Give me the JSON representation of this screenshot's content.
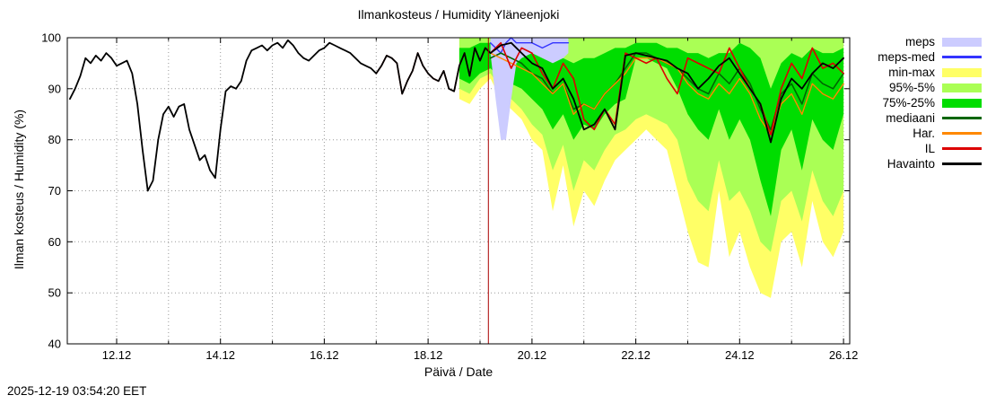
{
  "title": "Ilmankosteus / Humidity  Yläneenjoki",
  "timestamp": "2025-12-19 03:54:20 EET",
  "chart_data": {
    "type": "line",
    "title": "Ilmankosteus / Humidity  Yläneenjoki",
    "xlabel": "Päivä / Date",
    "ylabel": "Ilman kosteus / Humidity (%)",
    "xlim": [
      11.05,
      26.12
    ],
    "ylim": [
      40,
      100
    ],
    "grid": true,
    "legend_position": "outside-right",
    "y_ticks": [
      40,
      50,
      60,
      70,
      80,
      90,
      100
    ],
    "x_major_ticks": [
      {
        "v": 12,
        "label": "12.12"
      },
      {
        "v": 14,
        "label": "14.12"
      },
      {
        "v": 16,
        "label": "16.12"
      },
      {
        "v": 18,
        "label": "18.12"
      },
      {
        "v": 20,
        "label": "20.12"
      },
      {
        "v": 22,
        "label": "22.12"
      },
      {
        "v": 24,
        "label": "24.12"
      },
      {
        "v": 26,
        "label": "26.12"
      }
    ],
    "x_minor_days": [
      13,
      15,
      17,
      19,
      21,
      23,
      25
    ],
    "grid_days": [
      12,
      13,
      14,
      15,
      16,
      17,
      18,
      19,
      20,
      21,
      22,
      23,
      24,
      25,
      26
    ],
    "now_line": {
      "x": 19.16,
      "color": "#aa0000"
    },
    "bands": [
      {
        "name": "min-max",
        "color": "#ffff66",
        "x": [
          18.6,
          18.8,
          19.0,
          19.2,
          19.4,
          19.6,
          19.8,
          20.0,
          20.2,
          20.4,
          20.6,
          20.8,
          21.0,
          21.2,
          21.4,
          21.6,
          21.8,
          22.0,
          22.2,
          22.4,
          22.6,
          22.8,
          23.0,
          23.2,
          23.4,
          23.6,
          23.8,
          24.0,
          24.2,
          24.4,
          24.6,
          24.8,
          25.0,
          25.2,
          25.4,
          25.6,
          25.8,
          26.0
        ],
        "lo": [
          88,
          87,
          90,
          92,
          88,
          86,
          84,
          80,
          78,
          66,
          75,
          63,
          70,
          67,
          72,
          76,
          78,
          80,
          82,
          80,
          78,
          70,
          62,
          56,
          55,
          70,
          57,
          62,
          55,
          50,
          49,
          60,
          62,
          55,
          68,
          60,
          57,
          62
        ],
        "hi": [
          100,
          100,
          100,
          100,
          100,
          100,
          100,
          100,
          100,
          100,
          100,
          100,
          100,
          100,
          100,
          100,
          100,
          100,
          100,
          100,
          100,
          100,
          100,
          100,
          100,
          100,
          100,
          100,
          100,
          100,
          100,
          100,
          100,
          100,
          100,
          100,
          100,
          100
        ]
      },
      {
        "name": "95-5",
        "color": "#aaff55",
        "x": [
          18.6,
          18.8,
          19.0,
          19.2,
          19.4,
          19.6,
          19.8,
          20.0,
          20.2,
          20.4,
          20.6,
          20.8,
          21.0,
          21.2,
          21.4,
          21.6,
          21.8,
          22.0,
          22.2,
          22.4,
          22.6,
          22.8,
          23.0,
          23.2,
          23.4,
          23.6,
          23.8,
          24.0,
          24.2,
          24.4,
          24.6,
          24.8,
          25.0,
          25.2,
          25.4,
          25.6,
          25.8,
          26.0
        ],
        "lo": [
          90,
          89,
          92,
          93,
          90,
          88,
          86,
          83,
          81,
          74,
          79,
          70,
          76,
          74,
          78,
          81,
          82,
          84,
          85,
          84,
          83,
          80,
          72,
          68,
          66,
          76,
          68,
          70,
          66,
          60,
          58,
          68,
          70,
          64,
          74,
          68,
          65,
          70
        ],
        "hi": [
          100,
          100,
          100,
          100,
          100,
          100,
          100,
          100,
          100,
          100,
          100,
          100,
          100,
          100,
          100,
          100,
          100,
          100,
          100,
          100,
          100,
          100,
          100,
          100,
          100,
          100,
          100,
          100,
          100,
          100,
          100,
          100,
          100,
          100,
          100,
          100,
          100,
          100
        ]
      },
      {
        "name": "75-25",
        "color": "#00dd00",
        "x": [
          18.6,
          18.8,
          19.0,
          19.2,
          19.4,
          19.6,
          19.8,
          20.0,
          20.2,
          20.4,
          20.6,
          20.8,
          21.0,
          21.2,
          21.4,
          21.6,
          21.8,
          22.0,
          22.2,
          22.4,
          22.6,
          22.8,
          23.0,
          23.2,
          23.4,
          23.6,
          23.8,
          24.0,
          24.2,
          24.4,
          24.6,
          24.8,
          25.0,
          25.2,
          25.4,
          25.6,
          25.8,
          26.0
        ],
        "lo": [
          92,
          91,
          93,
          94,
          92,
          91,
          90,
          88,
          86,
          82,
          85,
          80,
          83,
          82,
          85,
          87,
          88,
          96,
          96,
          95,
          94,
          90,
          85,
          82,
          80,
          86,
          80,
          84,
          80,
          72,
          65,
          78,
          82,
          74,
          84,
          80,
          78,
          85
        ],
        "hi": [
          98,
          98,
          99,
          99,
          100,
          99,
          99,
          98,
          97,
          96,
          96,
          95,
          96,
          96,
          97,
          98,
          98,
          99,
          99,
          99,
          98,
          98,
          97,
          97,
          96,
          97,
          97,
          99,
          98,
          96,
          90,
          95,
          97,
          96,
          98,
          97,
          97,
          98
        ]
      },
      {
        "name": "meps",
        "color": "#ccccff",
        "x": [
          19.2,
          19.3,
          19.4,
          19.5,
          19.6,
          19.7,
          19.8,
          20.0,
          20.2,
          20.4,
          20.6,
          20.7
        ],
        "lo": [
          97,
          88,
          80,
          80,
          88,
          95,
          96,
          97,
          96,
          95,
          96,
          97
        ],
        "hi": [
          100,
          100,
          100,
          100,
          100,
          100,
          100,
          100,
          100,
          100,
          100,
          100
        ]
      }
    ],
    "lines": [
      {
        "name": "meps-med",
        "color": "#3333ff",
        "width": 1.4,
        "x": [
          19.2,
          19.3,
          19.4,
          19.5,
          19.6,
          19.7,
          19.8,
          20.0,
          20.2,
          20.4,
          20.6,
          20.7
        ],
        "y": [
          99,
          98,
          97,
          99,
          100,
          99,
          99,
          99,
          98,
          99,
          99,
          99
        ]
      },
      {
        "name": "mediaani",
        "color": "#006600",
        "width": 1.6,
        "x": [
          19.2,
          19.4,
          19.6,
          19.8,
          20.0,
          20.2,
          20.4,
          20.6,
          20.8,
          21.0,
          21.2,
          21.4,
          21.6,
          21.8,
          22.0,
          22.2,
          22.4,
          22.6,
          22.8,
          23.0,
          23.2,
          23.4,
          23.6,
          23.8,
          24.0,
          24.2,
          24.4,
          24.6,
          24.8,
          25.0,
          25.2,
          25.4,
          25.6,
          25.8,
          26.0
        ],
        "y": [
          96,
          97,
          96,
          95,
          93,
          92,
          89,
          91,
          86,
          87,
          86,
          89,
          91,
          94,
          97,
          97,
          96,
          95,
          94,
          92,
          90,
          89,
          93,
          91,
          94,
          91,
          86,
          82,
          89,
          91,
          87,
          93,
          91,
          90,
          93
        ]
      },
      {
        "name": "har",
        "color": "#ff8800",
        "width": 1.4,
        "x": [
          19.2,
          19.4,
          19.6,
          19.8,
          20.0,
          20.2,
          20.4,
          20.6,
          20.8,
          21.0,
          21.2,
          21.4,
          21.6,
          21.8,
          22.0,
          22.2,
          22.4,
          22.6,
          22.8,
          23.0,
          23.2,
          23.4,
          23.6,
          23.8,
          24.0,
          24.2,
          24.4,
          24.6,
          24.8,
          25.0,
          25.2,
          25.4,
          25.6,
          25.8,
          26.0
        ],
        "y": [
          97,
          96,
          95,
          94,
          93,
          91,
          89,
          91,
          85,
          87,
          86,
          89,
          91,
          93,
          96,
          96,
          96,
          95,
          94,
          91,
          89,
          88,
          91,
          89,
          92,
          89,
          84,
          81,
          87,
          89,
          85,
          91,
          89,
          88,
          91
        ]
      },
      {
        "name": "il",
        "color": "#dd0000",
        "width": 1.6,
        "x": [
          17.0,
          17.1,
          17.2,
          17.3,
          17.4,
          17.5,
          17.6,
          17.7,
          17.8,
          17.9,
          18.0,
          18.1,
          18.2,
          18.3,
          18.4,
          18.5,
          18.6,
          18.7,
          18.8,
          18.9,
          19.0,
          19.1,
          19.2,
          19.4,
          19.6,
          19.8,
          20.0,
          20.2,
          20.4,
          20.6,
          20.8,
          21.0,
          21.2,
          21.4,
          21.6,
          21.8,
          22.0,
          22.2,
          22.4,
          22.6,
          22.8,
          23.0,
          23.2,
          23.4,
          23.6,
          23.8,
          24.0,
          24.2,
          24.4,
          24.6,
          24.8,
          25.0,
          25.2,
          25.4,
          25.6,
          25.8,
          26.0
        ],
        "y": [
          93,
          94.5,
          96.5,
          96,
          95,
          89,
          91.5,
          93.5,
          97,
          94.5,
          93,
          92,
          91.5,
          93.5,
          90,
          89.5,
          94.5,
          97,
          92.5,
          98,
          95.5,
          98,
          97,
          99,
          94,
          98,
          97,
          93,
          90,
          95,
          92,
          84,
          82,
          86,
          83,
          97,
          96,
          95,
          96,
          92,
          89,
          96,
          95,
          94,
          93,
          98,
          94,
          90,
          87,
          81,
          90,
          95,
          92,
          98,
          94,
          95,
          93
        ]
      },
      {
        "name": "havainto",
        "color": "#000000",
        "width": 1.8,
        "x": [
          11.1,
          11.2,
          11.3,
          11.4,
          11.5,
          11.6,
          11.7,
          11.8,
          11.9,
          12.0,
          12.1,
          12.2,
          12.3,
          12.4,
          12.5,
          12.6,
          12.7,
          12.8,
          12.9,
          13.0,
          13.1,
          13.2,
          13.3,
          13.4,
          13.5,
          13.6,
          13.7,
          13.8,
          13.9,
          14.0,
          14.1,
          14.2,
          14.3,
          14.4,
          14.5,
          14.6,
          14.7,
          14.8,
          14.9,
          15.0,
          15.1,
          15.2,
          15.3,
          15.4,
          15.5,
          15.6,
          15.7,
          15.8,
          15.9,
          16.0,
          16.1,
          16.2,
          16.3,
          16.4,
          16.5,
          16.6,
          16.7,
          16.8,
          16.9,
          17.0,
          17.1,
          17.2,
          17.3,
          17.4,
          17.5,
          17.6,
          17.7,
          17.8,
          17.9,
          18.0,
          18.1,
          18.2,
          18.3,
          18.4,
          18.5,
          18.6,
          18.7,
          18.8,
          18.9,
          19.0,
          19.1,
          19.2,
          19.4,
          19.6,
          19.8,
          20.0,
          20.2,
          20.4,
          20.6,
          20.8,
          21.0,
          21.2,
          21.4,
          21.6,
          21.8,
          22.0,
          22.2,
          22.4,
          22.6,
          22.8,
          23.0,
          23.2,
          23.4,
          23.6,
          23.8,
          24.0,
          24.2,
          24.4,
          24.6,
          24.8,
          25.0,
          25.2,
          25.4,
          25.6,
          25.8,
          26.0
        ],
        "y": [
          88,
          90,
          92.5,
          96,
          95,
          96.5,
          95.5,
          97,
          96,
          94.5,
          95,
          95.5,
          93,
          87,
          78,
          70,
          72,
          80,
          85,
          86.5,
          84.5,
          86.5,
          87,
          82,
          79,
          76,
          77,
          74,
          72.5,
          82,
          89.5,
          90.5,
          90,
          91.5,
          95.5,
          97.5,
          98,
          98.5,
          97.5,
          98.5,
          99,
          98,
          99.5,
          98.5,
          97,
          96,
          95.5,
          96.5,
          97.5,
          98,
          99,
          98.5,
          98,
          97.5,
          97,
          96,
          95,
          94.5,
          94,
          93,
          94.5,
          96.5,
          96,
          95,
          89,
          91.5,
          93.5,
          97,
          94.5,
          93,
          92,
          91.5,
          93.5,
          90,
          89.5,
          94.5,
          97,
          92.5,
          98,
          95.5,
          98,
          97,
          98.5,
          99,
          97,
          95,
          94,
          90,
          92,
          88,
          82,
          83,
          86,
          82,
          96.5,
          97,
          96.5,
          96,
          95.5,
          94,
          93,
          90,
          92,
          94.5,
          96,
          93,
          90,
          87,
          79.5,
          88,
          92,
          90,
          93,
          95,
          94,
          96
        ]
      }
    ],
    "legend": [
      {
        "label": "meps",
        "color": "#ccccff",
        "kind": "band"
      },
      {
        "label": "meps-med",
        "color": "#3333ff",
        "kind": "line"
      },
      {
        "label": "min-max",
        "color": "#ffff66",
        "kind": "band"
      },
      {
        "label": "95%-5%",
        "color": "#aaff55",
        "kind": "band"
      },
      {
        "label": "75%-25%",
        "color": "#00dd00",
        "kind": "band"
      },
      {
        "label": "mediaani",
        "color": "#006600",
        "kind": "line"
      },
      {
        "label": "Har.",
        "color": "#ff8800",
        "kind": "line"
      },
      {
        "label": "IL",
        "color": "#dd0000",
        "kind": "line"
      },
      {
        "label": "Havainto",
        "color": "#000000",
        "kind": "line"
      }
    ]
  }
}
